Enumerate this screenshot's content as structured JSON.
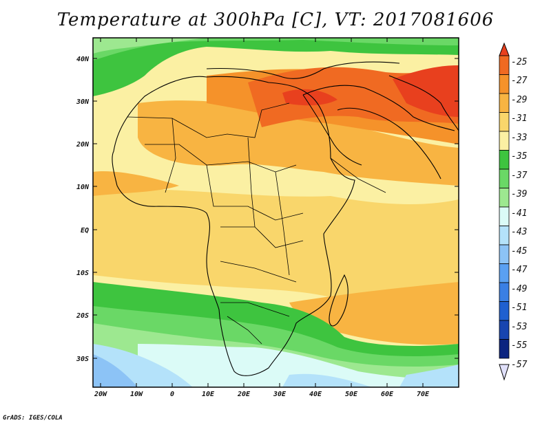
{
  "title": "Temperature at 300hPa [C], VT: 2017081606",
  "footer": "GrADS: IGES/COLA",
  "map": {
    "lon_labels": [
      "20W",
      "10W",
      "0",
      "10E",
      "20E",
      "30E",
      "40E",
      "50E",
      "60E",
      "70E"
    ],
    "lat_labels": [
      "40N",
      "30N",
      "20N",
      "10N",
      "EQ",
      "10S",
      "20S",
      "30S"
    ],
    "extent": {
      "lon_min": -22,
      "lon_max": 80,
      "lat_min": -37,
      "lat_max": 45
    },
    "variable": "Temperature at 300hPa",
    "units": "C"
  },
  "colorbar": {
    "labels": [
      "-25",
      "-27",
      "-29",
      "-31",
      "-33",
      "-35",
      "-37",
      "-39",
      "-41",
      "-43",
      "-45",
      "-47",
      "-49",
      "-51",
      "-53",
      "-55",
      "-57"
    ],
    "colors": [
      "#e8401e",
      "#f06a22",
      "#f5922a",
      "#f8b442",
      "#f9d66b",
      "#fbf0a3",
      "#3ec43f",
      "#6ad866",
      "#9de890",
      "#dbfbf7",
      "#b4e2fa",
      "#8cc3f6",
      "#5aa0f2",
      "#3a7fe4",
      "#2060d0",
      "#1845b0",
      "#0c2480"
    ],
    "top_color": "#e8401e",
    "bottom_color": "#e0e0fa"
  }
}
